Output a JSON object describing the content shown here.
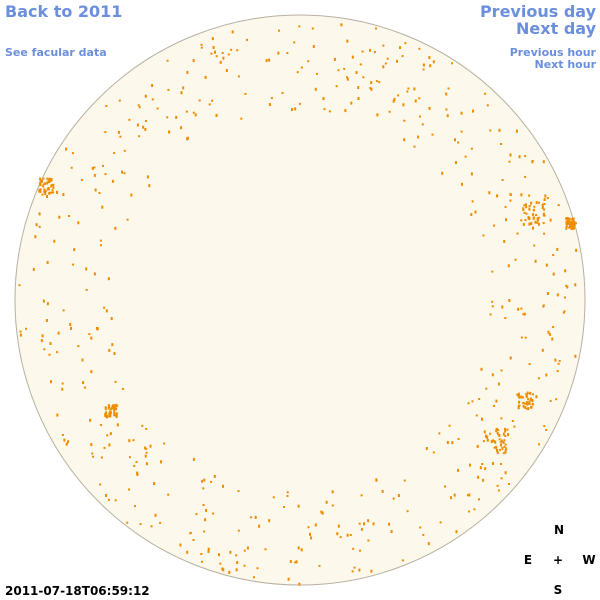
{
  "nav": {
    "back": "Back to 2011",
    "facular": "See facular data",
    "previous_day": "Previous day",
    "next_day": "Next day",
    "previous_hour": "Previous hour",
    "next_hour": "Next hour"
  },
  "timestamp": "2011-07-18T06:59:12",
  "compass": {
    "north": "N",
    "east": "E",
    "center": "+",
    "west": "W",
    "south": "S"
  }
}
